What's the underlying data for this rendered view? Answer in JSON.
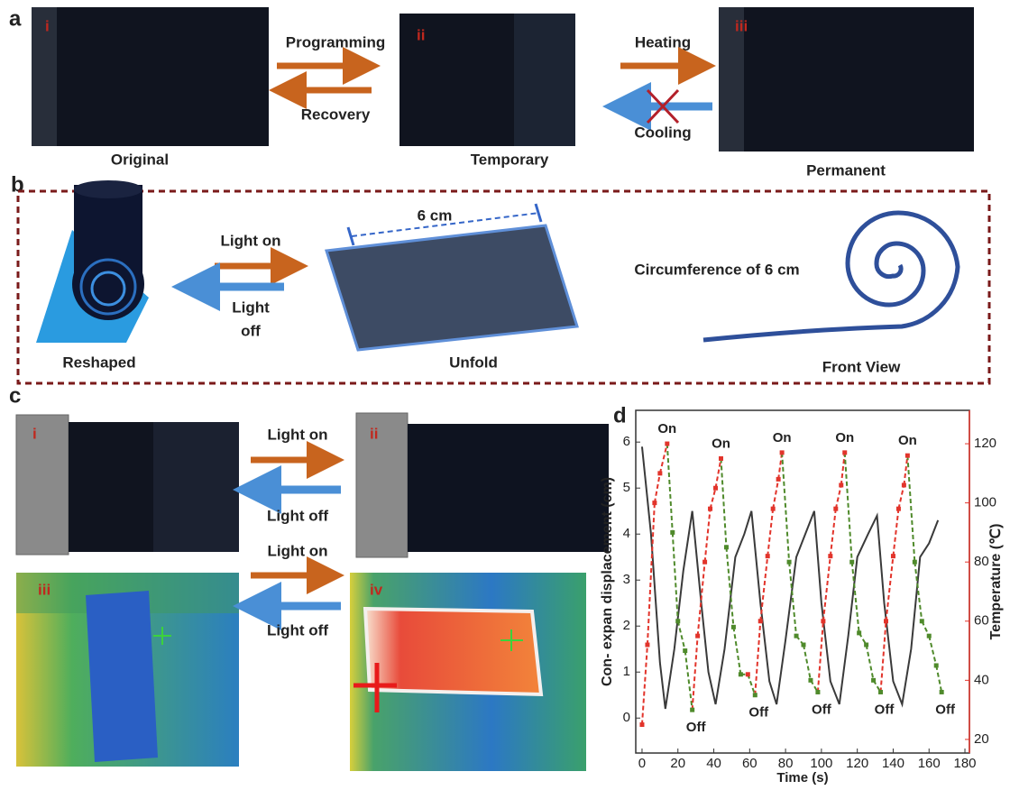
{
  "panel_a": {
    "label": "a",
    "images": [
      {
        "tag": "i",
        "caption": "Original"
      },
      {
        "tag": "ii",
        "caption": "Temporary"
      },
      {
        "tag": "iii",
        "caption": "Permanent"
      }
    ],
    "arrows_1": {
      "forward": "Programming",
      "back": "Recovery"
    },
    "arrows_2": {
      "forward": "Heating",
      "back": "Cooling"
    }
  },
  "panel_b": {
    "label": "b",
    "reshaped": "Reshaped",
    "light_on": "Light on",
    "light_off": [
      "Light",
      "off"
    ],
    "dimension": "6 cm",
    "unfold": "Unfold",
    "circumference": "Circumference of 6 cm",
    "front_view": "Front View"
  },
  "panel_c": {
    "label": "c",
    "tags": [
      "i",
      "ii",
      "iii",
      "iv"
    ],
    "arrow_labels": [
      {
        "on": "Light on",
        "off": "Light off"
      },
      {
        "on": "Light on",
        "off": "Light off"
      }
    ]
  },
  "chart_data": {
    "type": "line",
    "label": "d",
    "x_label": "Time (s)",
    "y_label": "Con- expan displacement (cm)",
    "y2_label": "Temperature (℃)",
    "xlim": [
      -3.5,
      182.5
    ],
    "xticks": [
      0,
      20,
      40,
      60,
      80,
      100,
      120,
      140,
      160,
      180
    ],
    "ylim": [
      -0.76,
      6.69
    ],
    "yticks": [
      0,
      1,
      2,
      3,
      4,
      5,
      6
    ],
    "y2lim": [
      15.4,
      131.3
    ],
    "y2ticks": [
      20,
      40,
      60,
      80,
      100,
      120
    ],
    "series": [
      {
        "color": "#3a3a3a",
        "x": [
          0,
          5,
          10,
          13,
          18,
          23,
          28,
          33,
          37,
          41,
          46,
          52,
          57,
          61,
          66,
          71,
          75,
          80,
          86,
          91,
          96,
          100,
          105,
          110,
          115,
          120,
          126,
          131,
          135,
          140,
          145,
          150,
          155,
          160,
          165
        ],
        "values": [
          5.9,
          4,
          1.2,
          0.2,
          1.5,
          3.2,
          4.5,
          2.5,
          1.0,
          0.3,
          1.5,
          3.5,
          4.0,
          4.5,
          2.5,
          0.8,
          0.3,
          1.7,
          3.5,
          4.0,
          4.5,
          2.5,
          0.8,
          0.3,
          1.8,
          3.5,
          4.0,
          4.4,
          2.5,
          0.8,
          0.3,
          1.5,
          3.5,
          3.8,
          4.3
        ]
      },
      {
        "axis": "y2",
        "color": "#e2342b",
        "fall_color": "#4f8a2b",
        "dashed": true,
        "x": [
          0,
          3,
          7,
          10,
          14,
          17,
          20,
          24,
          28,
          31,
          35,
          38,
          41,
          44,
          47,
          51,
          55,
          59,
          63,
          66,
          70,
          73,
          76,
          78,
          82,
          86,
          90,
          94,
          98,
          101,
          105,
          108,
          111,
          113,
          117,
          121,
          125,
          129,
          133,
          136,
          140,
          143,
          146,
          148,
          152,
          156,
          160,
          164,
          167
        ],
        "values": [
          25,
          52,
          100,
          110,
          120,
          90,
          60,
          50,
          30,
          55,
          80,
          98,
          105,
          115,
          85,
          58,
          42,
          42,
          35,
          60,
          82,
          98,
          108,
          117,
          80,
          55,
          52,
          40,
          36,
          60,
          82,
          98,
          106,
          117,
          80,
          56,
          52,
          40,
          36,
          60,
          82,
          98,
          106,
          116,
          80,
          60,
          55,
          45,
          36
        ]
      }
    ],
    "annotations": [
      {
        "text": "On",
        "x": 14,
        "y": 120
      },
      {
        "text": "On",
        "x": 44,
        "y": 115
      },
      {
        "text": "On",
        "x": 78,
        "y": 117
      },
      {
        "text": "On",
        "x": 113,
        "y": 117
      },
      {
        "text": "On",
        "x": 148,
        "y": 116
      },
      {
        "text": "Off",
        "x": 30,
        "y": 30
      },
      {
        "text": "Off",
        "x": 65,
        "y": 35
      },
      {
        "text": "Off",
        "x": 100,
        "y": 36
      },
      {
        "text": "Off",
        "x": 135,
        "y": 36
      },
      {
        "text": "Off",
        "x": 169,
        "y": 36
      }
    ]
  }
}
